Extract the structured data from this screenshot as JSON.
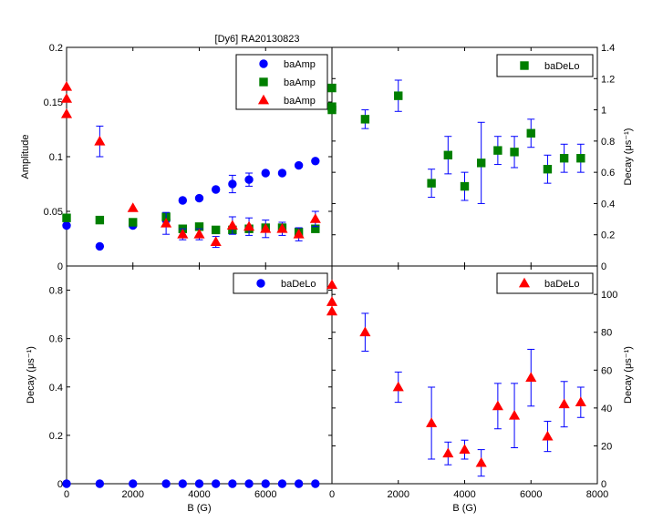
{
  "window_title": "[Dy6]     RA20130823",
  "colors": {
    "blue": "#0000ff",
    "green": "#007f00",
    "red": "#ff0000",
    "errorbar": "#0000ff",
    "axis": "#000000"
  },
  "chart_data": [
    {
      "id": "top-left",
      "type": "scatter",
      "title": "",
      "xlabel": "",
      "ylabel": "Amplitude",
      "xlim": [
        0,
        8000
      ],
      "ylim": [
        0,
        0.2
      ],
      "xticks": [
        0,
        2000,
        4000,
        6000
      ],
      "yticks": [
        0,
        0.05,
        0.1,
        0.15,
        0.2
      ],
      "ytick_labels": [
        "0",
        "0.05",
        "0.1",
        "0.15",
        "0.2"
      ],
      "xtick_labels": [],
      "legend_position": "top-right",
      "series": [
        {
          "name": "baAmp",
          "marker": "circle",
          "color": "#0000ff",
          "x": [
            0,
            1000,
            2000,
            3000,
            3500,
            4000,
            4500,
            5000,
            5500,
            6000,
            6500,
            7000,
            7500
          ],
          "y": [
            0.037,
            0.018,
            0.037,
            0.042,
            0.06,
            0.062,
            0.07,
            0.075,
            0.079,
            0.085,
            0.085,
            0.092,
            0.096
          ],
          "err": [
            0,
            0,
            0,
            0.006,
            0,
            0,
            0,
            0.008,
            0.006,
            0,
            0,
            0,
            0
          ]
        },
        {
          "name": "baAmp",
          "marker": "square",
          "color": "#007f00",
          "x": [
            0,
            1000,
            2000,
            3000,
            3500,
            4000,
            4500,
            5000,
            5500,
            6000,
            6500,
            7000,
            7500
          ],
          "y": [
            0.044,
            0.042,
            0.04,
            0.045,
            0.034,
            0.036,
            0.033,
            0.033,
            0.034,
            0.035,
            0.035,
            0.031,
            0.034
          ],
          "err": [
            0,
            0,
            0,
            0,
            0,
            0,
            0,
            0,
            0,
            0,
            0,
            0,
            0
          ]
        },
        {
          "name": "baAmp",
          "marker": "triangle",
          "color": "#ff0000",
          "x": [
            0,
            0,
            0,
            1000,
            2000,
            3000,
            3500,
            4000,
            4500,
            5000,
            5500,
            6000,
            6500,
            7000,
            7500
          ],
          "y": [
            0.164,
            0.153,
            0.139,
            0.114,
            0.053,
            0.039,
            0.029,
            0.029,
            0.022,
            0.037,
            0.036,
            0.034,
            0.034,
            0.029,
            0.043
          ],
          "err": [
            0,
            0,
            0,
            0.014,
            0,
            0.01,
            0.005,
            0.005,
            0.005,
            0.008,
            0.008,
            0.008,
            0.006,
            0.006,
            0.007
          ]
        }
      ]
    },
    {
      "id": "top-right",
      "type": "scatter",
      "title": "",
      "xlabel": "",
      "ylabel": "Decay (μs⁻¹)",
      "xlim": [
        0,
        8000
      ],
      "ylim": [
        0,
        1.4
      ],
      "xticks": [
        0,
        2000,
        4000,
        6000,
        8000
      ],
      "yticks": [
        0,
        0.2,
        0.4,
        0.6,
        0.8,
        1,
        1.2,
        1.4
      ],
      "ytick_labels": [
        "0",
        "0.2",
        "0.4",
        "0.6",
        "0.8",
        "1",
        "1.2",
        "1.4"
      ],
      "xtick_labels": [],
      "legend_position": "top-right",
      "series": [
        {
          "name": "baDeLo",
          "marker": "square",
          "color": "#007f00",
          "x": [
            0,
            0,
            0,
            1000,
            2000,
            3000,
            3500,
            4000,
            4500,
            5000,
            5500,
            6000,
            6500,
            7000,
            7500
          ],
          "y": [
            1.14,
            1.02,
            1.0,
            0.94,
            1.09,
            0.53,
            0.71,
            0.51,
            0.66,
            0.74,
            0.73,
            0.85,
            0.62,
            0.69,
            0.69
          ],
          "err": [
            0,
            0,
            0,
            0.06,
            0.1,
            0.09,
            0.12,
            0.09,
            0.26,
            0.09,
            0.1,
            0.09,
            0.09,
            0.09,
            0.09
          ]
        }
      ]
    },
    {
      "id": "bottom-left",
      "type": "scatter",
      "title": "",
      "xlabel": "B (G)",
      "ylabel": "Decay (μs⁻¹)",
      "xlim": [
        0,
        8000
      ],
      "ylim": [
        0,
        0.9
      ],
      "xticks": [
        0,
        2000,
        4000,
        6000
      ],
      "yticks": [
        0,
        0.2,
        0.4,
        0.6,
        0.8
      ],
      "ytick_labels": [
        "0",
        "0.2",
        "0.4",
        "0.6",
        "0.8"
      ],
      "xtick_labels": [
        "0",
        "2000",
        "4000",
        "6000"
      ],
      "legend_position": "top-right",
      "series": [
        {
          "name": "baDeLo",
          "marker": "circle",
          "color": "#0000ff",
          "x": [
            0,
            1000,
            2000,
            3000,
            3500,
            4000,
            4500,
            5000,
            5500,
            6000,
            6500,
            7000,
            7500
          ],
          "y": [
            0,
            0,
            0,
            0,
            0,
            0,
            0,
            0,
            0,
            0,
            0,
            0,
            0
          ],
          "err": [
            0,
            0,
            0,
            0,
            0,
            0,
            0,
            0,
            0,
            0,
            0,
            0,
            0
          ]
        }
      ]
    },
    {
      "id": "bottom-right",
      "type": "scatter",
      "title": "",
      "xlabel": "B (G)",
      "ylabel": "Decay (μs⁻¹)",
      "xlim": [
        0,
        8000
      ],
      "ylim": [
        0,
        115
      ],
      "xticks": [
        0,
        2000,
        4000,
        6000,
        8000
      ],
      "yticks": [
        0,
        20,
        40,
        60,
        80,
        100
      ],
      "ytick_labels": [
        "0",
        "20",
        "40",
        "60",
        "80",
        "100"
      ],
      "xtick_labels": [
        "0",
        "2000",
        "4000",
        "6000",
        "8000"
      ],
      "legend_position": "top-right",
      "series": [
        {
          "name": "baDeLo",
          "marker": "triangle",
          "color": "#ff0000",
          "x": [
            0,
            0,
            0,
            1000,
            2000,
            3000,
            3500,
            4000,
            4500,
            5000,
            5500,
            6000,
            6500,
            7000,
            7500
          ],
          "y": [
            105,
            96,
            91,
            80,
            51,
            32,
            16,
            18,
            11,
            41,
            36,
            56,
            25,
            42,
            43
          ],
          "err": [
            0,
            0,
            0,
            10,
            8,
            19,
            6,
            5,
            7,
            12,
            17,
            15,
            8,
            12,
            8
          ]
        }
      ]
    }
  ]
}
